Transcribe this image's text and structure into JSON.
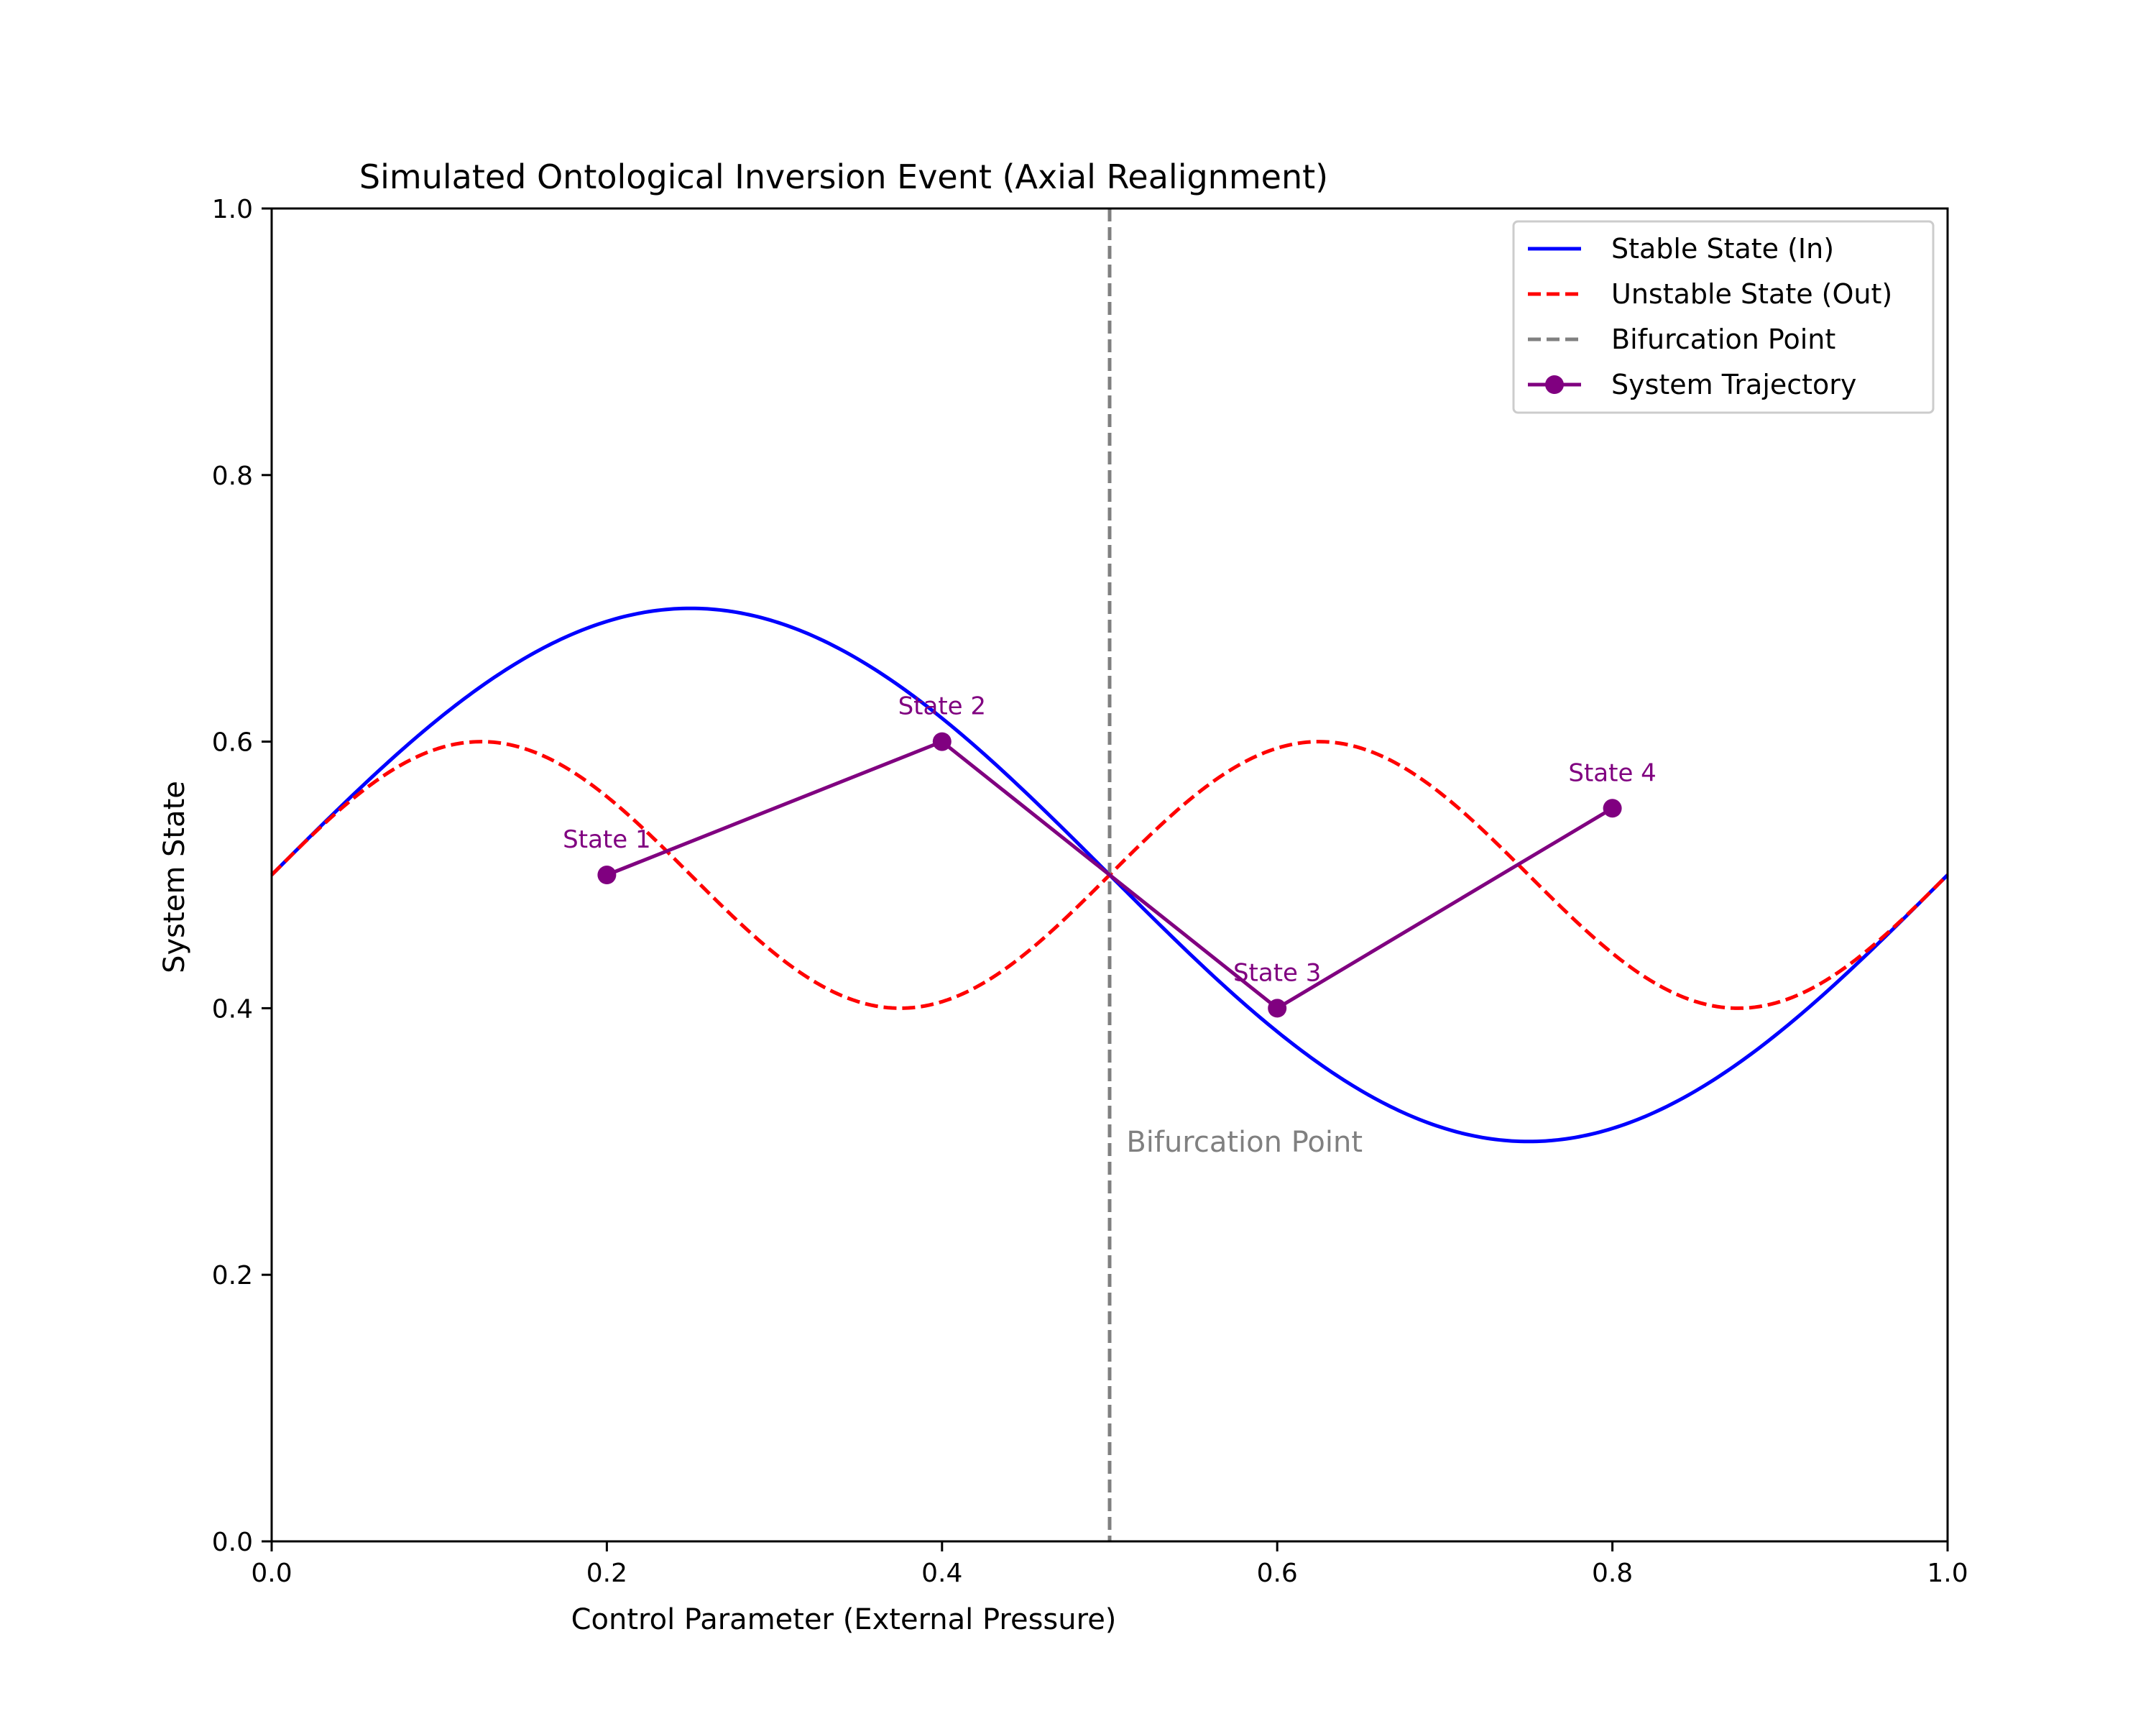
{
  "chart_data": {
    "type": "line",
    "title": "Simulated Ontological Inversion Event (Axial Realignment)",
    "xlabel": "Control Parameter (External Pressure)",
    "ylabel": "System State",
    "xlim": [
      0.0,
      1.0
    ],
    "ylim": [
      0.0,
      1.0
    ],
    "xticks": [
      "0.0",
      "0.2",
      "0.4",
      "0.6",
      "0.8",
      "1.0"
    ],
    "yticks": [
      "0.0",
      "0.2",
      "0.4",
      "0.6",
      "0.8",
      "1.0"
    ],
    "grid": false,
    "legend_position": "top-right",
    "series": [
      {
        "name": "Stable State (In)",
        "style": "solid",
        "color": "#0000ff",
        "function": "0.5 + 0.2*sin(2*pi*x)"
      },
      {
        "name": "Unstable State (Out)",
        "style": "dashed",
        "color": "#ff0000",
        "function": "0.5 + 0.1*sin(4*pi*x)"
      },
      {
        "name": "Bifurcation Point",
        "style": "dashed",
        "color": "#808080",
        "x": 0.5
      },
      {
        "name": "System Trajectory",
        "style": "solid-with-markers",
        "color": "#800080",
        "x": [
          0.2,
          0.4,
          0.5,
          0.6,
          0.8
        ],
        "y": [
          0.5,
          0.6,
          0.5,
          0.4,
          0.55
        ]
      }
    ],
    "point_labels": [
      {
        "text": "State 1",
        "x": 0.2,
        "y": 0.5
      },
      {
        "text": "State 2",
        "x": 0.4,
        "y": 0.6
      },
      {
        "text": "State 3",
        "x": 0.6,
        "y": 0.4
      },
      {
        "text": "State 4",
        "x": 0.8,
        "y": 0.55
      }
    ],
    "annotations": [
      {
        "text": "Bifurcation Point",
        "x": 0.51,
        "y": 0.3,
        "color": "#808080"
      }
    ]
  }
}
